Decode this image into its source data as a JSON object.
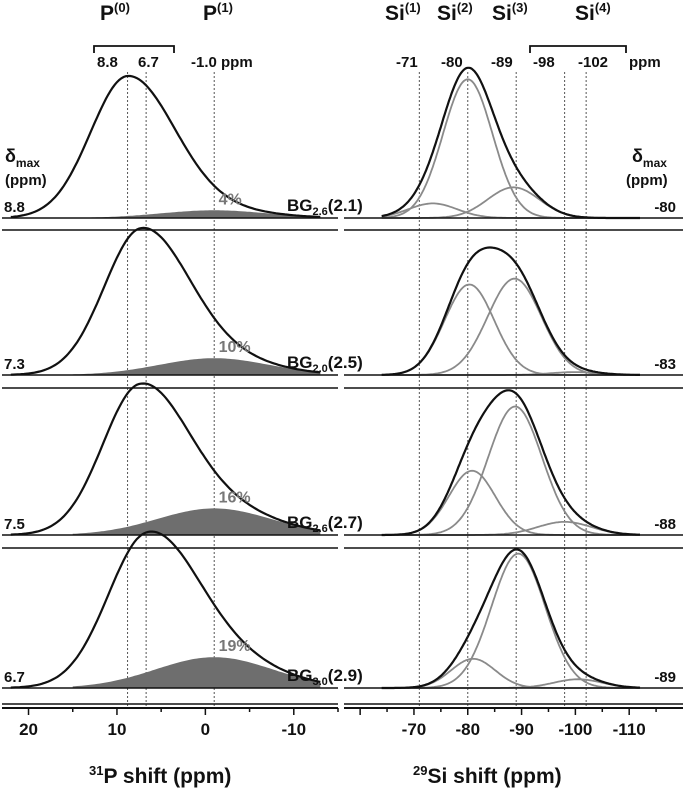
{
  "header": {
    "p0_label": "P",
    "p0_sup": "(0)",
    "p1_label": "P",
    "p1_sup": "(1)",
    "p0_range": [
      "8.8",
      "6.7"
    ],
    "p1_value": "-1.0 ppm",
    "si_labels": [
      {
        "base": "Si",
        "sup": "(1)"
      },
      {
        "base": "Si",
        "sup": "(2)"
      },
      {
        "base": "Si",
        "sup": "(3)"
      },
      {
        "base": "Si",
        "sup": "(4)"
      }
    ],
    "si_values": [
      "-71",
      "-80",
      "-89",
      "-98",
      "-102"
    ],
    "si_unit": "ppm"
  },
  "delta_label_left": {
    "main": "δ",
    "sub": "max",
    "unit": "(ppm)"
  },
  "delta_label_right": {
    "main": "δ",
    "sub": "max",
    "unit": "(ppm)"
  },
  "x_axis_left": {
    "sup": "31",
    "label": "P shift (ppm)"
  },
  "x_axis_right": {
    "sup": "29",
    "label": "Si shift (ppm)"
  },
  "chart_data": [
    {
      "type": "line",
      "nucleus": "31P",
      "xlabel": "31P shift (ppm)",
      "xlim": [
        23,
        -15
      ],
      "xticks": [
        20,
        10,
        0,
        -10
      ],
      "reference_lines": [
        8.8,
        6.7,
        -1.0
      ],
      "series": [
        {
          "sample": "BG2.6(2.1)",
          "delta_max": "8.8",
          "p0_center": 8.8,
          "p0_width": 4.2,
          "p1_center": -1.0,
          "p1_width": 6.0,
          "p1_amp": 0.055,
          "p1_percent": "4%"
        },
        {
          "sample": "BG2.0(2.5)",
          "delta_max": "7.3",
          "p0_center": 7.3,
          "p0_width": 4.2,
          "p1_center": -1.0,
          "p1_width": 6.2,
          "p1_amp": 0.12,
          "p1_percent": "10%"
        },
        {
          "sample": "BG2.6(2.7)",
          "delta_max": "7.5",
          "p0_center": 7.5,
          "p0_width": 4.2,
          "p1_center": -1.0,
          "p1_width": 6.4,
          "p1_amp": 0.19,
          "p1_percent": "16%"
        },
        {
          "sample": "BG3.0(2.9)",
          "delta_max": "6.7",
          "p0_center": 6.7,
          "p0_width": 4.4,
          "p1_center": -1.0,
          "p1_width": 6.6,
          "p1_amp": 0.22,
          "p1_percent": "19%"
        }
      ]
    },
    {
      "type": "line",
      "nucleus": "29Si",
      "xlabel": "29Si shift (ppm)",
      "xlim": [
        -57,
        -120
      ],
      "xticks": [
        -70,
        -80,
        -90,
        -100,
        -110
      ],
      "reference_lines": [
        -71,
        -80,
        -89,
        -98,
        -102
      ],
      "series": [
        {
          "sample": "BG2.6(2.1)",
          "delta_max": "-80",
          "components": [
            {
              "center": -73.5,
              "width": 4.5,
              "amp": 0.1
            },
            {
              "center": -80.0,
              "width": 4.6,
              "amp": 0.95
            },
            {
              "center": -88.5,
              "width": 4.8,
              "amp": 0.21
            }
          ]
        },
        {
          "sample": "BG2.0(2.5)",
          "delta_max": "-83",
          "components": [
            {
              "center": -80.3,
              "width": 4.6,
              "amp": 0.62
            },
            {
              "center": -88.7,
              "width": 5.0,
              "amp": 0.66
            },
            {
              "center": -100.0,
              "width": 4.5,
              "amp": 0.02
            }
          ]
        },
        {
          "sample": "BG2.6(2.7)",
          "delta_max": "-88",
          "components": [
            {
              "center": -80.8,
              "width": 4.3,
              "amp": 0.44
            },
            {
              "center": -88.8,
              "width": 5.0,
              "amp": 0.88
            },
            {
              "center": -98.0,
              "width": 5.0,
              "amp": 0.09
            }
          ]
        },
        {
          "sample": "BG3.0(2.9)",
          "delta_max": "-89",
          "components": [
            {
              "center": -81.0,
              "width": 4.1,
              "amp": 0.2
            },
            {
              "center": -89.4,
              "width": 5.0,
              "amp": 0.92
            },
            {
              "center": -100.5,
              "width": 4.5,
              "amp": 0.06
            }
          ]
        }
      ]
    }
  ]
}
